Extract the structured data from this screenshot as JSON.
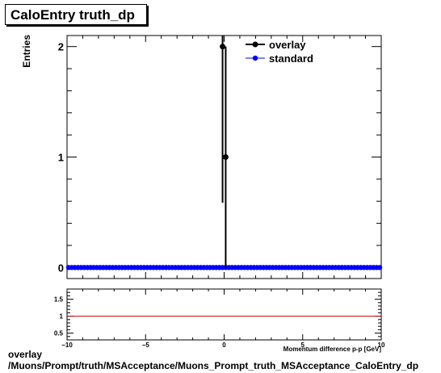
{
  "title": "CaloEntry truth_dp",
  "footer": {
    "line1": "overlay",
    "line2": "/Muons/Prompt/truth/MSAcceptance/Muons_Prompt_truth_MSAcceptance_CaloEntry_dp"
  },
  "colors": {
    "overlay": "#000000",
    "standard": "#0000ff",
    "ratio_line": "#cc0000"
  },
  "chart_data": [
    {
      "type": "scatter",
      "ylabel": "Entries",
      "xlim": [
        -10,
        10
      ],
      "ylim": [
        -0.1,
        2.1
      ],
      "yticks": [
        0,
        1,
        2
      ],
      "legend": {
        "placement": "top-right",
        "entries": [
          "overlay",
          "standard"
        ]
      },
      "series": [
        {
          "name": "overlay",
          "x": [
            -0.1,
            0.1
          ],
          "y": [
            2,
            1
          ],
          "yerr": [
            1.414,
            1.0
          ]
        },
        {
          "name": "standard",
          "x_from": -9.9,
          "x_to": 9.9,
          "x_step": 0.2,
          "y": 0
        }
      ]
    },
    {
      "type": "line",
      "xlabel": "Momentum difference p-p     [GeV]",
      "xlim": [
        -10,
        10
      ],
      "ylim": [
        0.3,
        1.8
      ],
      "yticks": [
        0.5,
        1,
        1.5
      ],
      "yticklabels": [
        "0.5",
        "1",
        "1.5"
      ],
      "xticks": [
        -10,
        -5,
        0,
        5,
        10
      ],
      "xticklabels": [
        "−10",
        "−5",
        "0",
        "5",
        "10"
      ],
      "reference_line": 1
    }
  ]
}
